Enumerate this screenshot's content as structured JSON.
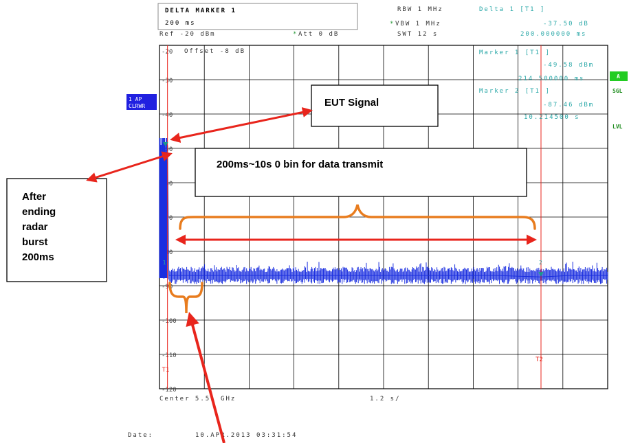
{
  "header": {
    "marker_title": "DELTA MARKER 1",
    "marker_value": "200 ms",
    "rbw": "RBW 1 MHz",
    "vbw": "VBW 1 MHz",
    "swt": "SWT 12 s",
    "vbw_star": "*",
    "ref": "Ref -20 dBm",
    "att_star": "*",
    "att": "Att  0 dB",
    "delta_title": "Delta 1 [T1 ]",
    "delta_level": "-37.50 dB",
    "delta_time": "200.000000 ms"
  },
  "markers": {
    "m1_title": "Marker 1 [T1 ]",
    "m1_level": "-49.58 dBm",
    "m1_time": "214.500000 ms",
    "m2_title": "Marker 2 [T1 ]",
    "m2_level": "-87.46 dBm",
    "m2_time": "10.214500 s",
    "t1_label": "T1",
    "t2_label": "T2",
    "num1": "1",
    "num2": "2"
  },
  "side_labels": {
    "trace_1ap": "1 AP",
    "trace_clrwr": "CLRWR",
    "a_badge": "A",
    "sgl": "SGL",
    "lvl": "LVL"
  },
  "plot": {
    "offset": "Offset -8 dB",
    "center": "Center 5.51 GHz",
    "span_per_div": "1.2 s/",
    "date_label": "Date:",
    "date_value": "10.APR.2013  03:31:54"
  },
  "annotations": {
    "eut_signal": "EUT Signal",
    "data_transmit": "200ms~10s 0 bin for data transmit",
    "after_line1": "After",
    "after_line2": "ending",
    "after_line3": "radar",
    "after_line4": "burst",
    "after_line5": "200ms"
  },
  "chart_data": {
    "type": "line",
    "ylabel": "",
    "xlabel": "",
    "y_tick_labels": [
      "-20",
      "-30",
      "-40",
      "-50",
      "-60",
      "-70",
      "-80",
      "-90",
      "-100",
      "-110",
      "-120"
    ],
    "ylim": [
      -120,
      -20
    ],
    "xlim": [
      0,
      12
    ],
    "x_unit": "s",
    "grid": true,
    "series": [
      {
        "x": [
          0.0,
          0.02,
          0.05,
          0.08,
          0.1,
          0.12,
          0.15,
          0.18,
          0.2145,
          0.25,
          0.5,
          1.0,
          2.0,
          3.0,
          4.0,
          5.0,
          6.0,
          7.0,
          8.0,
          9.0,
          10.2145,
          11.0,
          12.0
        ],
        "y": [
          -48,
          -86,
          -49,
          -52,
          -47,
          -88,
          -50,
          -55,
          -49.58,
          -87,
          -87,
          -87,
          -87,
          -87,
          -87,
          -87,
          -87,
          -87,
          -87,
          -87,
          -87.46,
          -87,
          -87
        ]
      }
    ],
    "markers": [
      {
        "id": "T1",
        "x": 0.2145,
        "y": -49.58
      },
      {
        "id": "T2",
        "x": 10.2145,
        "y": -87.46
      }
    ]
  }
}
